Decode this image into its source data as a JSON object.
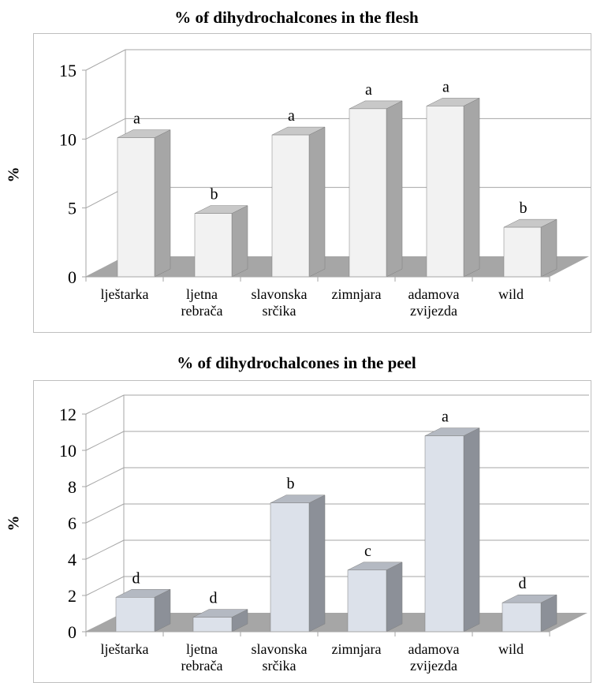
{
  "chart_data": [
    {
      "type": "bar",
      "title": "% of dihydrochalcones in the flesh",
      "ylabel": "%",
      "xlabel": "",
      "categories": [
        [
          "lještarka"
        ],
        [
          "ljetna",
          "rebrača"
        ],
        [
          "slavonska",
          "srčika"
        ],
        [
          "zimnjara"
        ],
        [
          "adamova",
          "zvijezda"
        ],
        [
          "wild"
        ]
      ],
      "values": [
        10.1,
        4.6,
        10.3,
        12.2,
        12.4,
        3.6
      ],
      "annotations": [
        "a",
        "b",
        "a",
        "a",
        "a",
        "b"
      ],
      "ylim": [
        0,
        15
      ],
      "yticks": [
        0,
        5,
        10,
        15
      ],
      "grid": true,
      "colors": {
        "front": "#f2f2f2",
        "side": "#a6a6a6",
        "top": "#c8c8c8",
        "floor": "#a6a6a6"
      }
    },
    {
      "type": "bar",
      "title": "% of dihydrochalcones in the peel",
      "ylabel": "%",
      "xlabel": "",
      "categories": [
        [
          "lještarka"
        ],
        [
          "ljetna",
          "rebrača"
        ],
        [
          "slavonska",
          "srčika"
        ],
        [
          "zimnjara"
        ],
        [
          "adamova",
          "zvijezda"
        ],
        [
          "wild"
        ]
      ],
      "values": [
        1.9,
        0.8,
        7.1,
        3.4,
        10.8,
        1.6
      ],
      "annotations": [
        "d",
        "d",
        "b",
        "c",
        "a",
        "d"
      ],
      "ylim": [
        0,
        12
      ],
      "yticks": [
        0,
        2,
        4,
        6,
        8,
        10,
        12
      ],
      "grid": true,
      "colors": {
        "front": "#dce1ea",
        "side": "#8c9098",
        "top": "#b4b9c2",
        "floor": "#a6a6a6"
      }
    }
  ]
}
